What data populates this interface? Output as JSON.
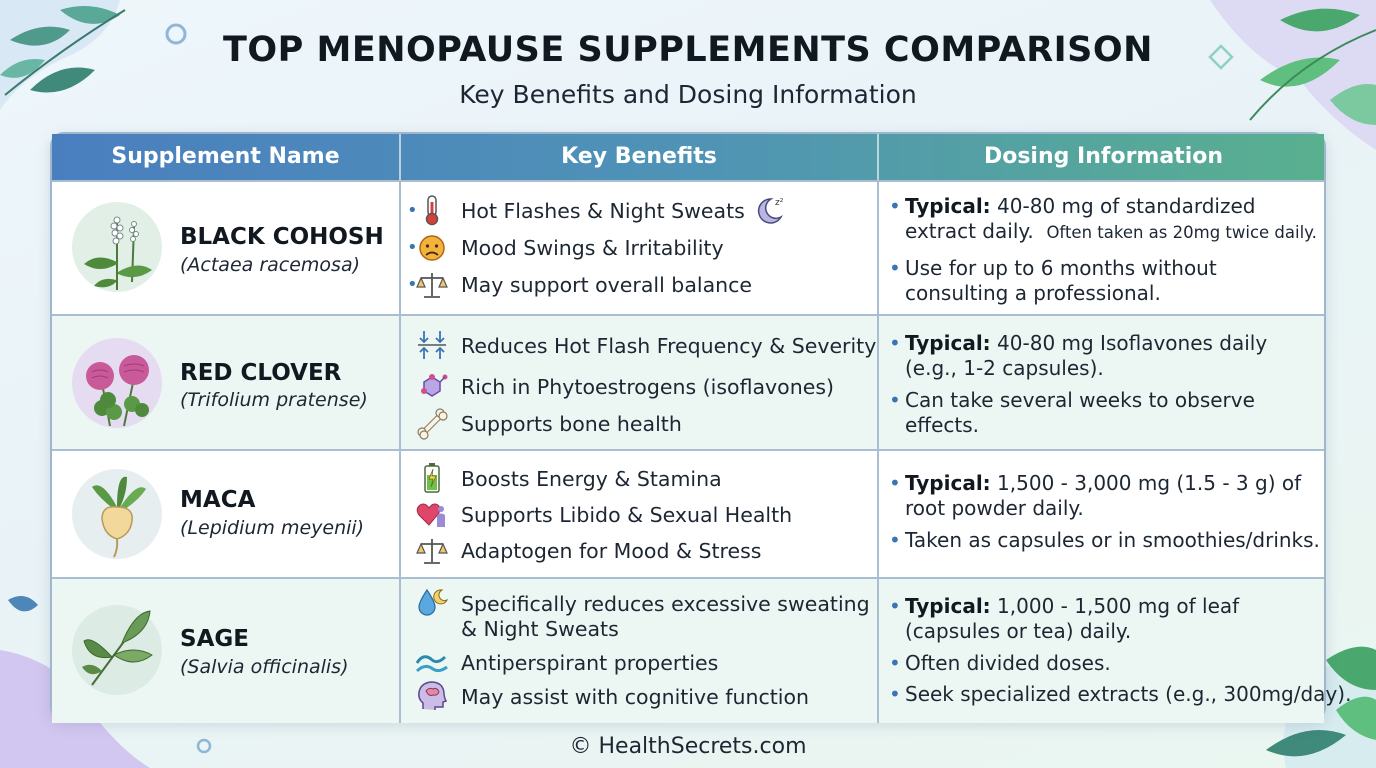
{
  "header": {
    "title": "TOP MENOPAUSE SUPPLEMENTS COMPARISON",
    "subtitle": "Key Benefits and Dosing Information"
  },
  "table": {
    "columns": [
      "Supplement Name",
      "Key Benefits",
      "Dosing Information"
    ],
    "rows": [
      {
        "name": "BLACK COHOSH",
        "latin": "(Actaea racemosa)",
        "plant_icon": "black-cohosh-plant-icon",
        "benefits": [
          {
            "icon": "thermometer-icon",
            "text": "Hot Flashes & Night Sweats",
            "extra_icon": "moon-sleep-icon"
          },
          {
            "icon": "upset-face-icon",
            "text": "Mood Swings & Irritability"
          },
          {
            "icon": "balance-scale-icon",
            "text": "May support overall balance"
          }
        ],
        "dosing": [
          {
            "label": "Typical:",
            "line1": "40-80 mg of standardized",
            "line2": "extract daily.",
            "note": "Often taken as 20mg twice daily."
          },
          {
            "label": "",
            "line1": "Use for up to 6 months without",
            "line2": "consulting a professional."
          }
        ]
      },
      {
        "name": "RED CLOVER",
        "latin": "(Trifolium pratense)",
        "plant_icon": "red-clover-plant-icon",
        "benefits": [
          {
            "icon": "reduce-arrows-icon",
            "text": "Reduces Hot Flash Frequency & Severity"
          },
          {
            "icon": "molecule-icon",
            "text": "Rich in Phytoestrogens (isoflavones)"
          },
          {
            "icon": "bone-icon",
            "text": "Supports bone health"
          }
        ],
        "dosing": [
          {
            "label": "Typical:",
            "line1": "40-80 mg Isoflavones daily",
            "line2": "(e.g., 1-2 capsules)."
          },
          {
            "label": "",
            "line1": "Can take several weeks to observe",
            "line2": "effects."
          }
        ]
      },
      {
        "name": "MACA",
        "latin": "(Lepidium meyenii)",
        "plant_icon": "maca-root-icon",
        "benefits": [
          {
            "icon": "battery-icon",
            "text": "Boosts Energy & Stamina"
          },
          {
            "icon": "heart-person-icon",
            "text": "Supports Libido & Sexual Health"
          },
          {
            "icon": "balance-scale-icon",
            "text": "Adaptogen for Mood & Stress"
          }
        ],
        "dosing": [
          {
            "label": "Typical:",
            "line1": "1,500 - 3,000 mg (1.5 - 3 g) of",
            "line2": "root powder daily."
          },
          {
            "label": "",
            "line1": "Taken as capsules or in smoothies/drinks.",
            "line2": ""
          }
        ]
      },
      {
        "name": "SAGE",
        "latin": "(Salvia officinalis)",
        "plant_icon": "sage-leaf-icon",
        "benefits": [
          {
            "icon": "drop-moon-icon",
            "text": "Specifically reduces excessive sweating",
            "text2": "& Night Sweats"
          },
          {
            "icon": "wave-icon",
            "text": "Antiperspirant properties"
          },
          {
            "icon": "brain-head-icon",
            "text": "May assist with cognitive function"
          }
        ],
        "dosing": [
          {
            "label": "Typical:",
            "line1": "1,000 - 1,500 mg of leaf",
            "line2": "(capsules or tea) daily."
          },
          {
            "label": "",
            "line1": "Often divided doses.",
            "line2": ""
          },
          {
            "label": "",
            "line1": "Seek specialized extracts (e.g., 300mg/day).",
            "line2": ""
          }
        ]
      }
    ]
  },
  "footer": {
    "text": "© HealthSecrets.com"
  },
  "colors": {
    "header_start": "#4a7fbf",
    "header_end": "#59b08e",
    "row_alt": "#ecf6f2",
    "bullet": "#3a74b3"
  }
}
